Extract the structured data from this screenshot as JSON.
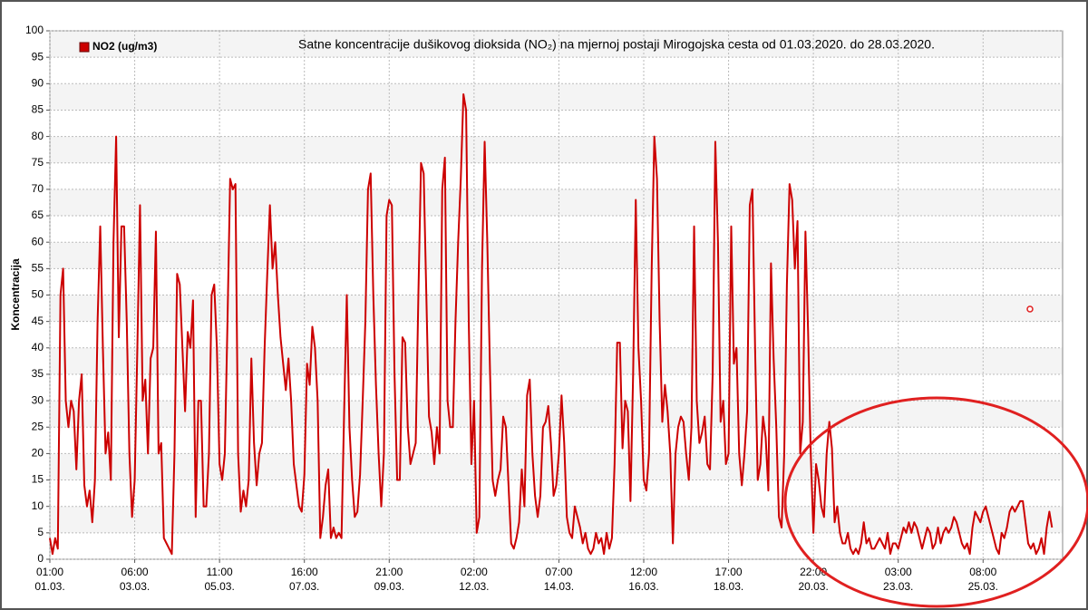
{
  "chart_data": {
    "type": "line",
    "title": "Satne koncentracije dušikovog dioksida (NO₂) na mjernoj postaji Mirogojska cesta od 01.03.2020. do 28.03.2020.",
    "y_label": "Koncentracija",
    "grid": true,
    "legend": "top-left",
    "xlim": [
      0,
      382
    ],
    "xticks": [
      {
        "value": 0,
        "label": [
          "01:00",
          "01.03."
        ]
      },
      {
        "value": 32,
        "label": [
          "06:00",
          "03.03."
        ]
      },
      {
        "value": 64,
        "label": [
          "11:00",
          "05.03."
        ]
      },
      {
        "value": 96,
        "label": [
          "16:00",
          "07.03."
        ]
      },
      {
        "value": 128,
        "label": [
          "21:00",
          "09.03."
        ]
      },
      {
        "value": 160,
        "label": [
          "02:00",
          "12.03."
        ]
      },
      {
        "value": 192,
        "label": [
          "07:00",
          "14.03."
        ]
      },
      {
        "value": 224,
        "label": [
          "12:00",
          "16.03."
        ]
      },
      {
        "value": 256,
        "label": [
          "17:00",
          "18.03."
        ]
      },
      {
        "value": 288,
        "label": [
          "22:00",
          "20.03."
        ]
      },
      {
        "value": 320,
        "label": [
          "03:00",
          "23.03."
        ]
      },
      {
        "value": 352,
        "label": [
          "08:00",
          "25.03."
        ]
      }
    ],
    "ylim": [
      0,
      100
    ],
    "yticks": [
      0,
      5,
      10,
      15,
      20,
      25,
      30,
      35,
      40,
      45,
      50,
      55,
      60,
      65,
      70,
      75,
      80,
      85,
      90,
      95,
      100
    ],
    "series": [
      {
        "name": "NO2 (ug/m3)",
        "color": "#cc0000",
        "values": [
          4,
          1,
          4,
          2,
          50,
          55,
          30,
          25,
          30,
          28,
          17,
          30,
          35,
          14,
          10,
          13,
          7,
          15,
          45,
          63,
          40,
          20,
          24,
          15,
          60,
          80,
          42,
          63,
          63,
          45,
          20,
          8,
          15,
          40,
          67,
          30,
          34,
          20,
          38,
          40,
          62,
          20,
          22,
          4,
          3,
          2,
          1,
          20,
          54,
          52,
          40,
          28,
          43,
          40,
          49,
          8,
          30,
          30,
          10,
          10,
          20,
          50,
          52,
          40,
          18,
          15,
          20,
          45,
          72,
          70,
          71,
          20,
          9,
          13,
          10,
          15,
          38,
          22,
          14,
          20,
          22,
          40,
          54,
          67,
          55,
          60,
          50,
          42,
          37,
          32,
          38,
          30,
          18,
          14,
          10,
          9,
          16,
          37,
          33,
          44,
          40,
          30,
          4,
          8,
          14,
          17,
          4,
          6,
          4,
          5,
          4,
          28,
          50,
          25,
          15,
          8,
          9,
          16,
          30,
          45,
          70,
          73,
          50,
          33,
          20,
          10,
          20,
          65,
          68,
          67,
          35,
          15,
          15,
          42,
          41,
          25,
          18,
          20,
          22,
          50,
          75,
          73,
          50,
          27,
          24,
          18,
          25,
          20,
          70,
          76,
          30,
          25,
          25,
          45,
          60,
          72,
          88,
          85,
          45,
          18,
          30,
          5,
          8,
          55,
          79,
          60,
          36,
          15,
          12,
          15,
          17,
          27,
          25,
          14,
          3,
          2,
          4,
          7,
          17,
          10,
          31,
          34,
          20,
          12,
          8,
          12,
          25,
          26,
          29,
          22,
          12,
          14,
          20,
          31,
          22,
          8,
          5,
          4,
          10,
          8,
          6,
          3,
          5,
          2,
          1,
          2,
          5,
          3,
          4,
          1,
          5,
          2,
          4,
          18,
          41,
          41,
          21,
          30,
          28,
          11,
          35,
          68,
          40,
          30,
          15,
          13,
          20,
          55,
          80,
          72,
          45,
          26,
          33,
          28,
          20,
          3,
          20,
          25,
          27,
          26,
          20,
          15,
          25,
          63,
          30,
          22,
          24,
          27,
          18,
          17,
          35,
          79,
          60,
          26,
          30,
          18,
          20,
          63,
          37,
          40,
          20,
          14,
          20,
          28,
          67,
          70,
          40,
          15,
          18,
          27,
          23,
          13,
          56,
          38,
          25,
          8,
          6,
          20,
          52,
          71,
          68,
          55,
          64,
          20,
          26,
          62,
          43,
          20,
          5,
          18,
          15,
          10,
          8,
          20,
          26,
          21,
          7,
          10,
          5,
          3,
          3,
          5,
          2,
          1,
          2,
          1,
          3,
          7,
          3,
          4,
          2,
          2,
          3,
          4,
          3,
          2,
          5,
          1,
          3,
          3,
          2,
          4,
          6,
          5,
          7,
          5,
          7,
          6,
          4,
          2,
          4,
          6,
          5,
          2,
          3,
          6,
          3,
          5,
          6,
          5,
          6,
          8,
          7,
          5,
          3,
          2,
          3,
          1,
          6,
          9,
          8,
          7,
          9,
          10,
          8,
          6,
          4,
          2,
          1,
          5,
          4,
          6,
          9,
          10,
          9,
          10,
          11,
          11,
          7,
          3,
          2,
          3,
          1,
          2,
          4,
          1,
          6,
          9,
          6
        ]
      }
    ]
  }
}
